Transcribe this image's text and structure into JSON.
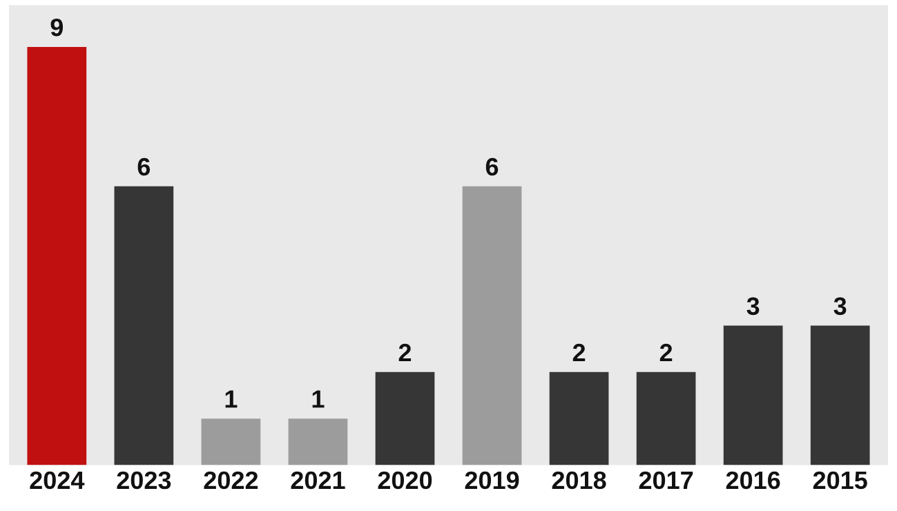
{
  "chart_data": {
    "type": "bar",
    "categories": [
      "2024",
      "2023",
      "2022",
      "2021",
      "2020",
      "2019",
      "2018",
      "2017",
      "2016",
      "2015"
    ],
    "values": [
      9,
      6,
      1,
      1,
      2,
      6,
      2,
      2,
      3,
      3
    ],
    "colors": [
      "#c01010",
      "#363636",
      "#9c9c9c",
      "#9c9c9c",
      "#363636",
      "#9c9c9c",
      "#363636",
      "#363636",
      "#363636",
      "#363636"
    ],
    "data_labels": true,
    "grid": false,
    "legend": false
  }
}
